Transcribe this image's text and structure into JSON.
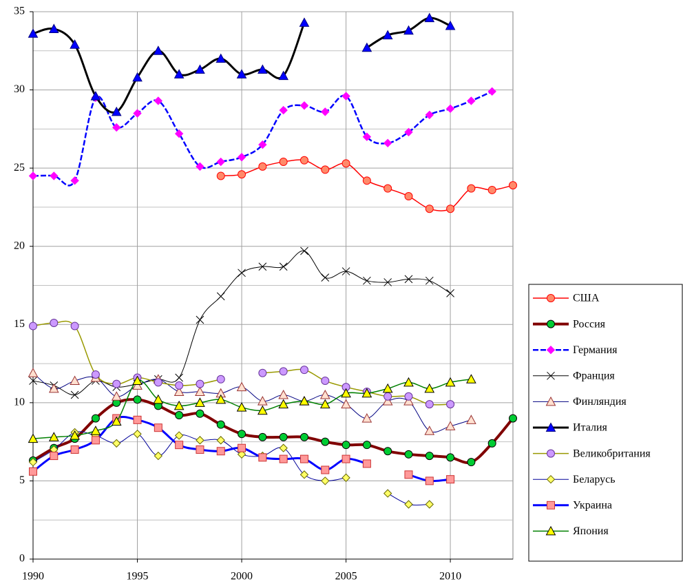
{
  "chart_data": {
    "type": "line",
    "smooth": true,
    "grid": true,
    "legend": "right",
    "x": [
      1990,
      1991,
      1992,
      1993,
      1994,
      1995,
      1996,
      1997,
      1998,
      1999,
      2000,
      2001,
      2002,
      2003,
      2004,
      2005,
      2006,
      2007,
      2008,
      2009,
      2010,
      2011,
      2012,
      2013
    ],
    "xlim": [
      1990,
      2013
    ],
    "xticks": [
      1990,
      1995,
      2000,
      2005,
      2010
    ],
    "ylim": [
      0,
      35
    ],
    "yticks": [
      0,
      5,
      10,
      15,
      20,
      25,
      30,
      35
    ],
    "minor_yticks": [
      2.5,
      7.5,
      12.5,
      17.5,
      22.5,
      27.5,
      32.5
    ],
    "series": [
      {
        "name": "США",
        "color": "#ff0000",
        "line_width": 1.5,
        "marker": "circle",
        "marker_color": "#ff8a6a",
        "marker_stroke": "#ff0000",
        "values": [
          null,
          null,
          null,
          null,
          null,
          null,
          null,
          null,
          null,
          24.5,
          24.6,
          25.1,
          25.4,
          25.5,
          24.9,
          25.3,
          24.2,
          23.7,
          23.2,
          22.4,
          22.4,
          23.7,
          23.6,
          23.9
        ]
      },
      {
        "name": "Россия",
        "color": "#800000",
        "line_width": 4,
        "marker": "circle",
        "marker_color": "#00cc33",
        "marker_stroke": "#000000",
        "values": [
          6.3,
          7.1,
          7.7,
          9.0,
          10.0,
          10.2,
          9.8,
          9.2,
          9.3,
          8.6,
          8.0,
          7.8,
          7.8,
          7.8,
          7.5,
          7.3,
          7.3,
          6.9,
          6.7,
          6.6,
          6.5,
          6.2,
          7.4,
          9.0
        ]
      },
      {
        "name": "Германия",
        "color": "#0000ff",
        "line_width": 2.5,
        "dash": "8 3",
        "marker": "diamond",
        "marker_color": "#ff00ff",
        "marker_stroke": "#ff00ff",
        "values": [
          24.5,
          24.5,
          24.2,
          29.5,
          27.6,
          28.5,
          29.3,
          27.2,
          25.1,
          25.4,
          25.7,
          26.5,
          28.7,
          29.0,
          28.6,
          29.6,
          27.0,
          26.6,
          27.3,
          28.4,
          28.8,
          29.3,
          29.9,
          null
        ]
      },
      {
        "name": "Франция",
        "color": "#000000",
        "line_width": 1,
        "marker": "x",
        "marker_color": "#000000",
        "marker_stroke": "#000000",
        "values": [
          11.4,
          11.1,
          10.5,
          11.4,
          11.0,
          11.2,
          11.5,
          11.6,
          15.3,
          16.8,
          18.3,
          18.7,
          18.7,
          19.7,
          18.0,
          18.4,
          17.8,
          17.7,
          17.9,
          17.8,
          17.0,
          null,
          null,
          null
        ]
      },
      {
        "name": "Финляндия",
        "color": "#000080",
        "line_width": 1,
        "marker": "triangle",
        "marker_color": "#ffe0d0",
        "marker_stroke": "#993333",
        "values": [
          11.9,
          10.9,
          11.4,
          11.6,
          10.4,
          11.1,
          11.5,
          10.7,
          10.7,
          10.6,
          11.0,
          10.1,
          10.5,
          10.1,
          10.5,
          9.9,
          9.0,
          10.1,
          10.1,
          8.2,
          8.5,
          8.9,
          null,
          null
        ]
      },
      {
        "name": "Италия",
        "color": "#000000",
        "line_width": 3,
        "marker": "triangle",
        "marker_color": "#0000ff",
        "marker_stroke": "#000080",
        "values": [
          33.6,
          33.9,
          32.9,
          29.6,
          28.6,
          30.8,
          32.5,
          31.0,
          31.3,
          32.0,
          31.0,
          31.3,
          30.9,
          34.3,
          null,
          null,
          32.7,
          33.5,
          33.8,
          34.6,
          34.1,
          null,
          null,
          null
        ]
      },
      {
        "name": "Великобритания",
        "color": "#999900",
        "line_width": 1.5,
        "marker": "circle",
        "marker_color": "#cc99ff",
        "marker_stroke": "#663399",
        "values": [
          14.9,
          15.1,
          14.9,
          11.8,
          11.2,
          11.6,
          11.3,
          11.1,
          11.2,
          11.5,
          null,
          11.9,
          12.0,
          12.1,
          11.4,
          11.0,
          10.7,
          10.4,
          10.4,
          9.9,
          9.9,
          null,
          null,
          null
        ]
      },
      {
        "name": "Беларусь",
        "color": "#000099",
        "line_width": 1,
        "marker": "diamond",
        "marker_color": "#ffff66",
        "marker_stroke": "#666600",
        "values": [
          6.2,
          7.0,
          8.1,
          7.9,
          7.4,
          8.0,
          6.6,
          7.9,
          7.6,
          7.6,
          6.7,
          6.6,
          7.1,
          5.4,
          5.0,
          5.2,
          null,
          4.2,
          3.5,
          3.5,
          null,
          null,
          null,
          null
        ]
      },
      {
        "name": "Украина",
        "color": "#0000ff",
        "line_width": 3,
        "marker": "square",
        "marker_color": "#ff9999",
        "marker_stroke": "#cc3333",
        "values": [
          5.6,
          6.6,
          7.0,
          7.6,
          9.0,
          8.9,
          8.4,
          7.3,
          7.0,
          6.9,
          7.1,
          6.5,
          6.4,
          6.4,
          5.7,
          6.4,
          6.1,
          null,
          5.4,
          5.0,
          5.1,
          null,
          null,
          null
        ]
      },
      {
        "name": "Япония",
        "color": "#008000",
        "line_width": 1.5,
        "marker": "triangle",
        "marker_color": "#ffff00",
        "marker_stroke": "#000000",
        "values": [
          7.7,
          7.8,
          7.9,
          8.2,
          8.8,
          11.4,
          10.2,
          9.8,
          10.0,
          10.2,
          9.7,
          9.5,
          9.9,
          10.1,
          9.9,
          10.6,
          10.6,
          10.9,
          11.3,
          10.9,
          11.3,
          11.5,
          null,
          null
        ]
      }
    ]
  }
}
